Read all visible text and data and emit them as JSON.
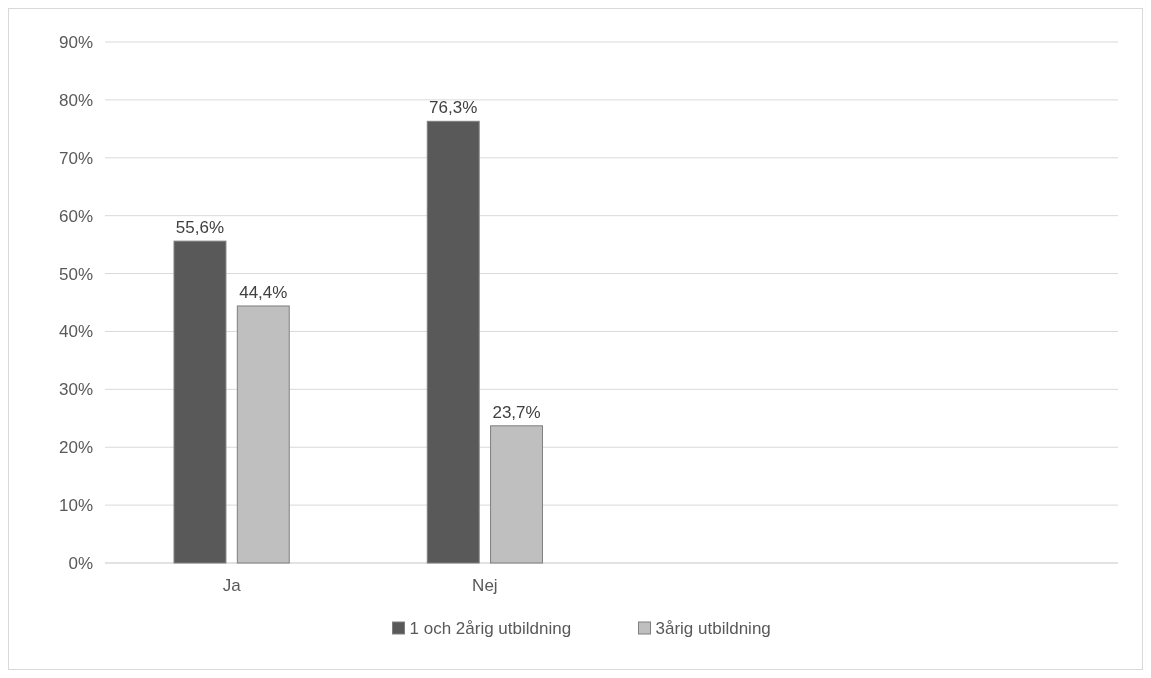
{
  "chart_data": {
    "type": "bar",
    "categories": [
      "Ja",
      "Nej",
      null,
      null
    ],
    "series": [
      {
        "name": "1 och 2årig utbildning",
        "color": "#595959",
        "values": [
          55.6,
          76.3,
          null,
          null
        ],
        "value_labels": [
          "55,6%",
          "76,3%",
          null,
          null
        ]
      },
      {
        "name": "3årig utbildning",
        "color": "#bfbfbf",
        "values": [
          44.4,
          23.7,
          null,
          null
        ],
        "value_labels": [
          "44,4%",
          "23,7%",
          null,
          null
        ]
      }
    ],
    "ylim": [
      0,
      90
    ],
    "yticks": [
      {
        "value": 0,
        "label": "0%"
      },
      {
        "value": 10,
        "label": "10%"
      },
      {
        "value": 20,
        "label": "20%"
      },
      {
        "value": 30,
        "label": "30%"
      },
      {
        "value": 40,
        "label": "40%"
      },
      {
        "value": 50,
        "label": "50%"
      },
      {
        "value": 60,
        "label": "60%"
      },
      {
        "value": 70,
        "label": "70%"
      },
      {
        "value": 80,
        "label": "80%"
      },
      {
        "value": 90,
        "label": "90%"
      }
    ],
    "grid": "y",
    "legend": "bottom"
  }
}
